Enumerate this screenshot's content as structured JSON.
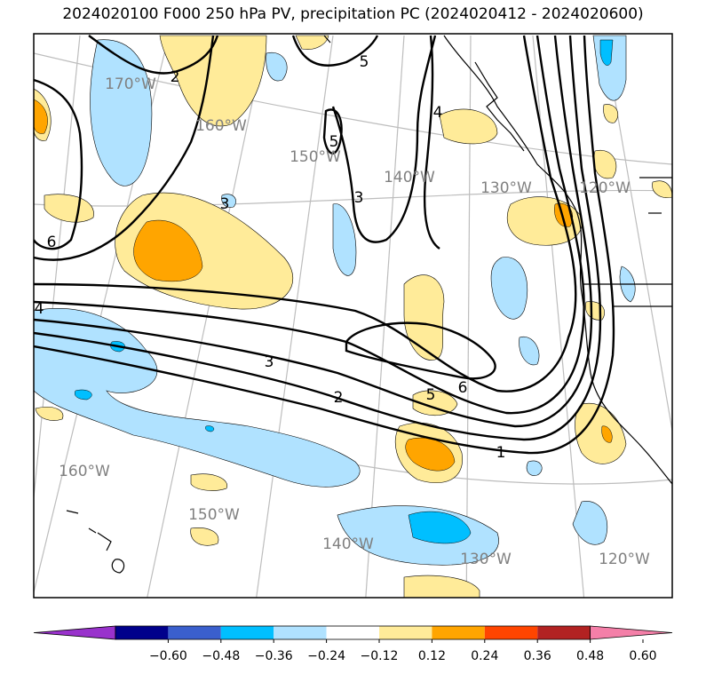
{
  "title": "2024020100 F000 250 hPa PV, precipitation PC (2024020412 - 2024020600)",
  "map": {
    "contour_labels": [
      "2",
      "5",
      "5",
      "4",
      "3",
      "3",
      "6",
      "4",
      "3",
      "2",
      "1",
      "5",
      "6"
    ],
    "lon_labels_upper": [
      "170°W",
      "160°W",
      "150°W",
      "140°W",
      "130°W",
      "120°W"
    ],
    "lon_labels_lower": [
      "160°W",
      "150°W",
      "140°W",
      "130°W",
      "120°W"
    ]
  },
  "colorbar": {
    "colors": [
      "#9932cc",
      "#00008b",
      "#3a5fcd",
      "#00bfff",
      "#b0e2ff",
      "#ffffff",
      "#ffeb99",
      "#ffa500",
      "#ff4500",
      "#b22222",
      "#f47fa8"
    ],
    "tick_labels": [
      "−0.60",
      "−0.48",
      "−0.36",
      "−0.24",
      "−0.12",
      "0.12",
      "0.24",
      "0.36",
      "0.48",
      "0.60"
    ]
  }
}
